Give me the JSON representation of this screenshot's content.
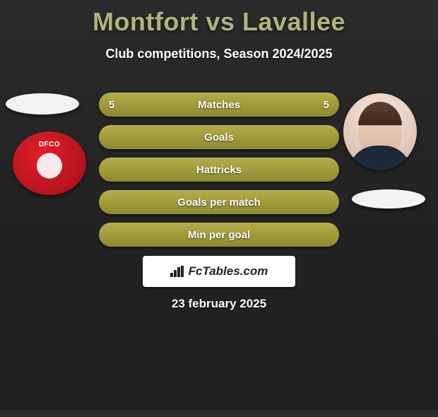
{
  "title": "Montfort vs Lavallee",
  "subtitle": "Club competitions, Season 2024/2025",
  "date": "23 february 2025",
  "brand": {
    "name": "FcTables.com"
  },
  "colors": {
    "pill_gold": "#a9a33f",
    "pill_gold_dark": "#8e892f",
    "title_color": "#b0b37a",
    "crest_red": "#c4151d"
  },
  "players": {
    "left": {
      "name": "Montfort",
      "club_tag": "DFCO"
    },
    "right": {
      "name": "Lavallee"
    }
  },
  "rows": [
    {
      "key": "matches",
      "label": "Matches",
      "left": "5",
      "right": "5",
      "style": "stat"
    },
    {
      "key": "goals",
      "label": "Goals",
      "left": "",
      "right": "",
      "style": "plain"
    },
    {
      "key": "hattricks",
      "label": "Hattricks",
      "left": "",
      "right": "",
      "style": "plain"
    },
    {
      "key": "gpm",
      "label": "Goals per match",
      "left": "",
      "right": "",
      "style": "plain"
    },
    {
      "key": "mpg",
      "label": "Min per goal",
      "left": "",
      "right": "",
      "style": "plain"
    }
  ]
}
